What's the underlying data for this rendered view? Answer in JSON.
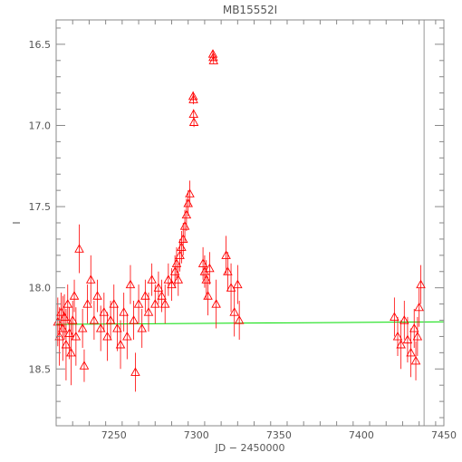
{
  "chart_data": {
    "type": "scatter",
    "title": "MB15552I",
    "xlabel": "JD − 2450000",
    "ylabel": "I",
    "xlim": [
      7215,
      7450
    ],
    "ylim": [
      18.85,
      16.35
    ],
    "y_inverted": true,
    "xticks": [
      7250,
      7300,
      7350,
      7400,
      7450
    ],
    "yticks": [
      16.5,
      17.0,
      17.5,
      18.0,
      18.5
    ],
    "ytick_labels": [
      "16.5",
      "17.0",
      "17.5",
      "18.0",
      "18.5"
    ],
    "grid": false,
    "series": [
      {
        "marker": "open-triangle",
        "color": "#ff0000",
        "points": [
          [
            7216,
            18.21,
            0.15
          ],
          [
            7217,
            18.3,
            0.18
          ],
          [
            7218,
            18.15,
            0.12
          ],
          [
            7219,
            18.25,
            0.2
          ],
          [
            7220,
            18.18,
            0.14
          ],
          [
            7221,
            18.35,
            0.22
          ],
          [
            7222,
            18.1,
            0.12
          ],
          [
            7223,
            18.28,
            0.16
          ],
          [
            7224,
            18.4,
            0.2
          ],
          [
            7225,
            18.2,
            0.12
          ],
          [
            7226,
            18.05,
            0.1
          ],
          [
            7227,
            18.3,
            0.18
          ],
          [
            7229,
            17.76,
            0.15
          ],
          [
            7231,
            18.25,
            0.12
          ],
          [
            7232,
            18.48,
            0.1
          ],
          [
            7234,
            18.1,
            0.12
          ],
          [
            7236,
            17.95,
            0.15
          ],
          [
            7238,
            18.2,
            0.12
          ],
          [
            7240,
            18.05,
            0.1
          ],
          [
            7242,
            18.25,
            0.14
          ],
          [
            7244,
            18.15,
            0.12
          ],
          [
            7246,
            18.3,
            0.15
          ],
          [
            7248,
            18.2,
            0.12
          ],
          [
            7250,
            18.1,
            0.12
          ],
          [
            7252,
            18.25,
            0.14
          ],
          [
            7254,
            18.35,
            0.15
          ],
          [
            7256,
            18.15,
            0.12
          ],
          [
            7258,
            18.3,
            0.14
          ],
          [
            7260,
            17.98,
            0.12
          ],
          [
            7262,
            18.2,
            0.12
          ],
          [
            7263,
            18.52,
            0.12
          ],
          [
            7265,
            18.1,
            0.12
          ],
          [
            7267,
            18.25,
            0.12
          ],
          [
            7269,
            18.05,
            0.1
          ],
          [
            7271,
            18.15,
            0.12
          ],
          [
            7273,
            17.95,
            0.1
          ],
          [
            7275,
            18.1,
            0.12
          ],
          [
            7277,
            18.0,
            0.1
          ],
          [
            7279,
            18.05,
            0.1
          ],
          [
            7281,
            18.1,
            0.12
          ],
          [
            7283,
            17.95,
            0.1
          ],
          [
            7285,
            17.98,
            0.1
          ],
          [
            7287,
            17.9,
            0.1
          ],
          [
            7288,
            17.85,
            0.1
          ],
          [
            7289,
            17.95,
            0.1
          ],
          [
            7290,
            17.8,
            0.1
          ],
          [
            7291,
            17.75,
            0.1
          ],
          [
            7292,
            17.7,
            0.1
          ],
          [
            7293,
            17.62,
            0.1
          ],
          [
            7294,
            17.55,
            0.1
          ],
          [
            7295,
            17.48,
            0.08
          ],
          [
            7296,
            17.42,
            0.08
          ],
          [
            7298,
            16.82,
            0.03
          ],
          [
            7298.2,
            16.84,
            0.03
          ],
          [
            7298.3,
            16.93,
            0.03
          ],
          [
            7298.5,
            16.98,
            0.03
          ],
          [
            7304,
            17.85,
            0.1
          ],
          [
            7305,
            17.9,
            0.1
          ],
          [
            7306,
            17.95,
            0.12
          ],
          [
            7307,
            18.05,
            0.12
          ],
          [
            7308,
            17.88,
            0.1
          ],
          [
            7310,
            16.56,
            0.02
          ],
          [
            7310.2,
            16.58,
            0.02
          ],
          [
            7310.4,
            16.6,
            0.02
          ],
          [
            7312,
            18.1,
            0.15
          ],
          [
            7318,
            17.8,
            0.12
          ],
          [
            7319,
            17.9,
            0.12
          ],
          [
            7321,
            18.0,
            0.15
          ],
          [
            7323,
            18.15,
            0.15
          ],
          [
            7325,
            17.98,
            0.12
          ],
          [
            7326,
            18.2,
            0.12
          ],
          [
            7420,
            18.18,
            0.12
          ],
          [
            7422,
            18.3,
            0.12
          ],
          [
            7424,
            18.35,
            0.15
          ],
          [
            7426,
            18.2,
            0.12
          ],
          [
            7428,
            18.32,
            0.14
          ],
          [
            7430,
            18.4,
            0.15
          ],
          [
            7432,
            18.25,
            0.12
          ],
          [
            7433,
            18.45,
            0.12
          ],
          [
            7434,
            18.3,
            0.12
          ],
          [
            7435,
            18.12,
            0.12
          ],
          [
            7436,
            17.98,
            0.12
          ]
        ]
      }
    ],
    "baseline": {
      "color": "#00dd00",
      "points": [
        [
          7215,
          18.225
        ],
        [
          7450,
          18.21
        ]
      ]
    },
    "marker_line": {
      "x": 7438,
      "color": "#999999"
    }
  }
}
